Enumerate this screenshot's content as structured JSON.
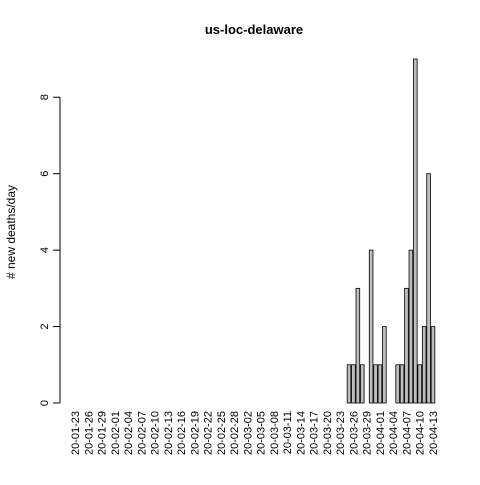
{
  "chart_data": {
    "type": "bar",
    "title": "us-loc-delaware",
    "y_label": "# new deaths/day",
    "categories": [
      "20-01-23",
      null,
      null,
      "20-01-26",
      null,
      null,
      "20-01-29",
      null,
      null,
      "20-02-01",
      null,
      null,
      "20-02-04",
      null,
      null,
      "20-02-07",
      null,
      null,
      "20-02-10",
      null,
      null,
      "20-02-13",
      null,
      null,
      "20-02-16",
      null,
      null,
      "20-02-19",
      null,
      null,
      "20-02-22",
      null,
      null,
      "20-02-25",
      null,
      null,
      "20-02-28",
      null,
      null,
      "20-03-02",
      null,
      null,
      "20-03-05",
      null,
      null,
      "20-03-08",
      null,
      null,
      "20-03-11",
      null,
      null,
      "20-03-14",
      null,
      null,
      "20-03-17",
      null,
      null,
      "20-03-20",
      null,
      null,
      "20-03-23",
      null,
      null,
      "20-03-26",
      null,
      null,
      "20-03-29",
      null,
      null,
      "20-04-01",
      null,
      null,
      "20-04-04",
      null,
      null,
      "20-04-07",
      null,
      null,
      "20-04-10",
      null,
      null,
      "20-04-13"
    ],
    "values": [
      0,
      0,
      0,
      0,
      0,
      0,
      0,
      0,
      0,
      0,
      0,
      0,
      0,
      0,
      0,
      0,
      0,
      0,
      0,
      0,
      0,
      0,
      0,
      0,
      0,
      0,
      0,
      0,
      0,
      0,
      0,
      0,
      0,
      0,
      0,
      0,
      0,
      0,
      0,
      0,
      0,
      0,
      0,
      0,
      0,
      0,
      0,
      0,
      0,
      0,
      0,
      0,
      0,
      0,
      0,
      0,
      0,
      0,
      0,
      0,
      0,
      0,
      1,
      1,
      3,
      1,
      0,
      4,
      1,
      1,
      2,
      0,
      0,
      1,
      1,
      3,
      4,
      9,
      1,
      2,
      6,
      2
    ],
    "color": "#bebebe",
    "ylim": [
      0,
      9
    ],
    "yticks": [
      0,
      2,
      4,
      6,
      8
    ]
  }
}
